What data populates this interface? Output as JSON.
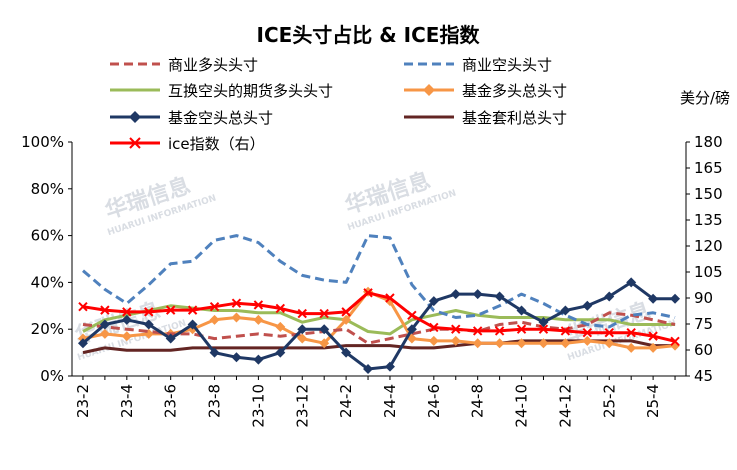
{
  "chart_data": {
    "type": "line",
    "title": "ICE头寸占比 & ICE指数",
    "right_axis_unit": "美分/磅",
    "watermark": [
      "华瑞信息",
      "HUARUI INFORMATION"
    ],
    "categories": [
      "23-2",
      "23-3",
      "23-4",
      "23-5",
      "23-6",
      "23-7",
      "23-8",
      "23-9",
      "23-10",
      "23-11",
      "23-12",
      "24-1",
      "24-2",
      "24-3",
      "24-4",
      "24-5",
      "24-6",
      "24-7",
      "24-8",
      "24-9",
      "24-10",
      "24-11",
      "24-12",
      "25-1",
      "25-2",
      "25-3",
      "25-4",
      "25-5"
    ],
    "x_tick_labels": [
      "23-2",
      "23-4",
      "23-6",
      "23-8",
      "23-10",
      "23-12",
      "24-2",
      "24-4",
      "24-6",
      "24-8",
      "24-10",
      "24-12",
      "25-2",
      "25-4"
    ],
    "y_left": {
      "min": 0,
      "max": 100,
      "ticks": [
        "0%",
        "20%",
        "40%",
        "60%",
        "80%",
        "100%"
      ]
    },
    "y_right": {
      "min": 45,
      "max": 180,
      "ticks": [
        "45",
        "60",
        "75",
        "90",
        "105",
        "120",
        "135",
        "150",
        "165",
        "180"
      ]
    },
    "series": [
      {
        "name": "商业多头头寸",
        "axis": "left",
        "style": "dashed",
        "color": "#c0504d",
        "values": [
          22,
          21,
          20,
          19,
          18,
          18,
          16,
          17,
          18,
          17,
          18,
          19,
          20,
          14,
          16,
          18,
          20,
          20,
          19,
          22,
          23,
          21,
          20,
          22,
          27,
          26,
          24,
          22
        ]
      },
      {
        "name": "商业空头头寸",
        "axis": "left",
        "style": "dashed",
        "color": "#4f81bd",
        "values": [
          45,
          37,
          31,
          39,
          48,
          49,
          58,
          60,
          57,
          49,
          43,
          41,
          40,
          60,
          59,
          39,
          28,
          25,
          26,
          30,
          35,
          31,
          26,
          22,
          21,
          26,
          27,
          25
        ]
      },
      {
        "name": "互换空头的期货多头头寸",
        "axis": "left",
        "style": "solid",
        "color": "#9bbb59",
        "values": [
          19,
          24,
          26,
          28,
          30,
          29,
          28,
          28,
          27,
          27,
          23,
          25,
          24,
          19,
          18,
          24,
          26,
          28,
          26,
          25,
          25,
          25,
          24,
          24,
          24,
          22,
          22,
          22
        ]
      },
      {
        "name": "基金多头总头寸",
        "axis": "left",
        "style": "solid",
        "marker": "diamond",
        "color": "#f79646",
        "values": [
          16,
          18,
          17,
          18,
          18,
          20,
          24,
          25,
          24,
          21,
          16,
          14,
          24,
          36,
          32,
          16,
          15,
          15,
          14,
          14,
          14,
          14,
          14,
          15,
          14,
          12,
          12,
          13
        ]
      },
      {
        "name": "基金空头总头寸",
        "axis": "left",
        "style": "solid",
        "marker": "diamond",
        "color": "#1f3864",
        "values": [
          14,
          22,
          24,
          22,
          16,
          22,
          10,
          8,
          7,
          10,
          20,
          20,
          10,
          3,
          4,
          20,
          32,
          35,
          35,
          34,
          28,
          23,
          28,
          30,
          34,
          40,
          33,
          33
        ]
      },
      {
        "name": "基金套利总头寸",
        "axis": "left",
        "style": "solid",
        "color": "#632523",
        "values": [
          10,
          12,
          11,
          11,
          11,
          12,
          12,
          12,
          12,
          12,
          12,
          12,
          13,
          13,
          13,
          12,
          12,
          13,
          14,
          14,
          15,
          15,
          15,
          15,
          15,
          15,
          13,
          13
        ]
      },
      {
        "name": "ice指数（右）",
        "axis": "right",
        "style": "solid",
        "marker": "x",
        "color": "#ff0000",
        "values": [
          85,
          83,
          82,
          82,
          83,
          83,
          85,
          87,
          86,
          84,
          81,
          81,
          82,
          93,
          90,
          80,
          73,
          72,
          71,
          71,
          72,
          72,
          71,
          70,
          70,
          70,
          68,
          65
        ]
      }
    ]
  }
}
